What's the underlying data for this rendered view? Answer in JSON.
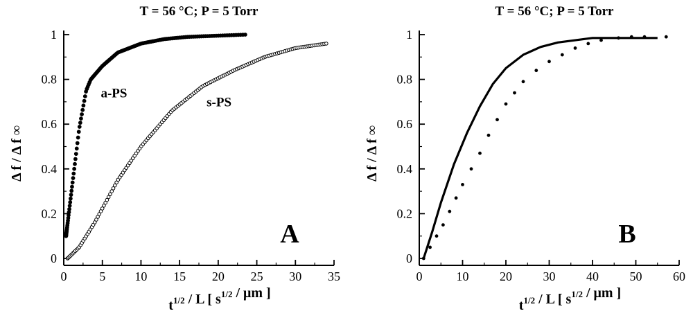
{
  "chart_data": [
    {
      "type": "scatter",
      "panel": "A",
      "title": "T = 56 °C;    P = 5 Torr",
      "ylabel": "Δ f / Δ f ∞",
      "xlabel": {
        "base": "t",
        "sup": "1/2",
        "mid": " / L [ s",
        "sup2": "1/2",
        "end": " / μm ]"
      },
      "xlim": [
        0,
        35
      ],
      "ylim": [
        0,
        1
      ],
      "xticks": [
        0,
        5,
        10,
        15,
        20,
        25,
        30,
        35
      ],
      "yticks": [
        0,
        0.2,
        0.4,
        0.6,
        0.8,
        1
      ],
      "ytick_labels": [
        "0",
        "0.2",
        "0.4",
        "0.6",
        "0.8",
        "1"
      ],
      "series": [
        {
          "name": "a-PS",
          "marker": "filled-circle",
          "curve": "sqrt-then-exp",
          "x_range": [
            0.3,
            23.5
          ],
          "points": [
            [
              0.3,
              0.1
            ],
            [
              1.0,
              0.3
            ],
            [
              2.0,
              0.58
            ],
            [
              2.9,
              0.75
            ],
            [
              3.5,
              0.8
            ],
            [
              5.0,
              0.86
            ],
            [
              7.0,
              0.92
            ],
            [
              10.0,
              0.96
            ],
            [
              13.0,
              0.98
            ],
            [
              16.0,
              0.99
            ],
            [
              23.5,
              1.0
            ]
          ]
        },
        {
          "name": "s-PS",
          "marker": "open-circle",
          "curve": "exp",
          "x_range": [
            0.5,
            34
          ],
          "points": [
            [
              0.5,
              0.0
            ],
            [
              2.0,
              0.05
            ],
            [
              4.0,
              0.16
            ],
            [
              7.0,
              0.35
            ],
            [
              10.0,
              0.5
            ],
            [
              14.0,
              0.66
            ],
            [
              18.0,
              0.77
            ],
            [
              22.0,
              0.84
            ],
            [
              26.0,
              0.9
            ],
            [
              30.0,
              0.94
            ],
            [
              34.0,
              0.96
            ]
          ]
        }
      ],
      "annotations": [
        {
          "text": "a-PS",
          "x": 4.8,
          "y": 0.72
        },
        {
          "text": "s-PS",
          "x": 18.5,
          "y": 0.68
        }
      ],
      "panel_label": "A"
    },
    {
      "type": "line",
      "panel": "B",
      "title": "T = 56 °C;    P = 5 Torr",
      "ylabel": "Δ f / Δ f ∞",
      "xlabel": {
        "base": "t",
        "sup": "1/2",
        "mid": " / L [ s",
        "sup2": "1/2",
        "end": " / μm ]"
      },
      "xlim": [
        0,
        60
      ],
      "ylim": [
        0,
        1
      ],
      "xticks": [
        0,
        10,
        20,
        30,
        40,
        50,
        60
      ],
      "yticks": [
        0,
        0.2,
        0.4,
        0.6,
        0.8,
        1
      ],
      "ytick_labels": [
        "0",
        "0.2",
        "0.4",
        "0.6",
        "0.8",
        "1"
      ],
      "series": [
        {
          "style": "solid",
          "points": [
            [
              1,
              0.0
            ],
            [
              3,
              0.12
            ],
            [
              5,
              0.25
            ],
            [
              8,
              0.42
            ],
            [
              11,
              0.56
            ],
            [
              14,
              0.68
            ],
            [
              17,
              0.78
            ],
            [
              20,
              0.85
            ],
            [
              24,
              0.91
            ],
            [
              28,
              0.945
            ],
            [
              32,
              0.965
            ],
            [
              36,
              0.975
            ],
            [
              40,
              0.985
            ],
            [
              55,
              0.985
            ]
          ]
        },
        {
          "style": "dotted",
          "points": [
            [
              1,
              0.0
            ],
            [
              2.5,
              0.05
            ],
            [
              4,
              0.1
            ],
            [
              5.5,
              0.15
            ],
            [
              7,
              0.21
            ],
            [
              8.5,
              0.27
            ],
            [
              10,
              0.33
            ],
            [
              12,
              0.4
            ],
            [
              14,
              0.47
            ],
            [
              16,
              0.55
            ],
            [
              18,
              0.62
            ],
            [
              20,
              0.69
            ],
            [
              22,
              0.74
            ],
            [
              24,
              0.79
            ],
            [
              27,
              0.84
            ],
            [
              30,
              0.88
            ],
            [
              33,
              0.91
            ],
            [
              36,
              0.94
            ],
            [
              39,
              0.96
            ],
            [
              42,
              0.975
            ],
            [
              46,
              0.985
            ],
            [
              49,
              0.99
            ],
            [
              52,
              0.99
            ],
            [
              57,
              0.99
            ]
          ]
        }
      ],
      "panel_label": "B"
    }
  ]
}
